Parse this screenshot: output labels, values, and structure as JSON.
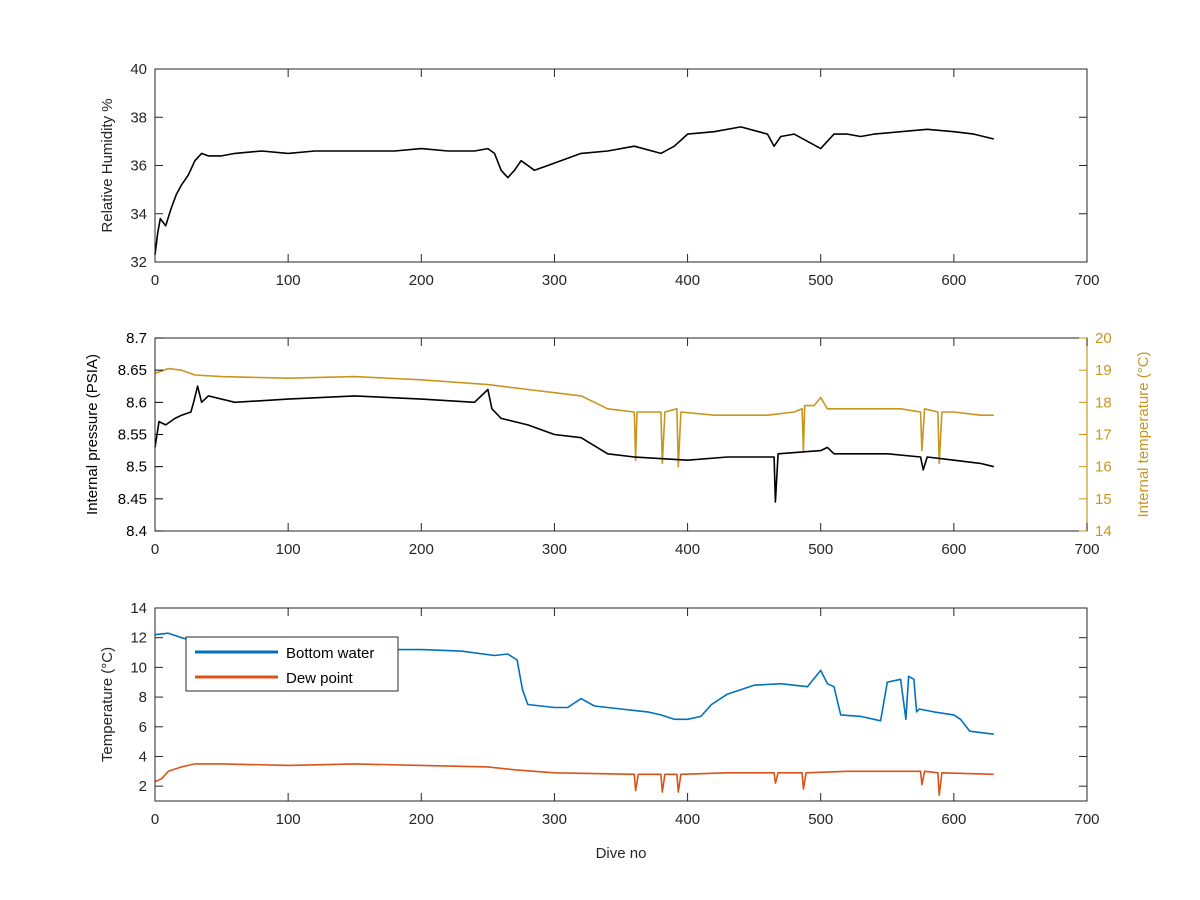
{
  "colors": {
    "black": "#000000",
    "gold": "#C8961E",
    "blue": "#0072BD",
    "orange": "#D95319",
    "axis": "#262626"
  },
  "xlabel": "Dive no",
  "chart_data": [
    {
      "type": "line",
      "xlabel": "",
      "ylabel": "Relative Humidity %",
      "xlim": [
        0,
        700
      ],
      "ylim": [
        32,
        40
      ],
      "xticks": [
        0,
        100,
        200,
        300,
        400,
        500,
        600,
        700
      ],
      "yticks": [
        32,
        34,
        36,
        38,
        40
      ],
      "grid": false,
      "series": [
        {
          "color": "#000000",
          "points": [
            [
              0,
              32.3
            ],
            [
              2,
              33.2
            ],
            [
              4,
              33.8
            ],
            [
              8,
              33.5
            ],
            [
              12,
              34.2
            ],
            [
              16,
              34.8
            ],
            [
              20,
              35.2
            ],
            [
              25,
              35.6
            ],
            [
              30,
              36.2
            ],
            [
              35,
              36.5
            ],
            [
              40,
              36.4
            ],
            [
              50,
              36.4
            ],
            [
              60,
              36.5
            ],
            [
              80,
              36.6
            ],
            [
              100,
              36.5
            ],
            [
              120,
              36.6
            ],
            [
              150,
              36.6
            ],
            [
              180,
              36.6
            ],
            [
              200,
              36.7
            ],
            [
              220,
              36.6
            ],
            [
              240,
              36.6
            ],
            [
              250,
              36.7
            ],
            [
              255,
              36.5
            ],
            [
              260,
              35.8
            ],
            [
              265,
              35.5
            ],
            [
              270,
              35.8
            ],
            [
              275,
              36.2
            ],
            [
              285,
              35.8
            ],
            [
              295,
              36.0
            ],
            [
              310,
              36.3
            ],
            [
              320,
              36.5
            ],
            [
              340,
              36.6
            ],
            [
              360,
              36.8
            ],
            [
              380,
              36.5
            ],
            [
              390,
              36.8
            ],
            [
              400,
              37.3
            ],
            [
              420,
              37.4
            ],
            [
              440,
              37.6
            ],
            [
              460,
              37.3
            ],
            [
              465,
              36.8
            ],
            [
              470,
              37.2
            ],
            [
              480,
              37.3
            ],
            [
              500,
              36.7
            ],
            [
              510,
              37.3
            ],
            [
              520,
              37.3
            ],
            [
              530,
              37.2
            ],
            [
              540,
              37.3
            ],
            [
              560,
              37.4
            ],
            [
              580,
              37.5
            ],
            [
              600,
              37.4
            ],
            [
              615,
              37.3
            ],
            [
              630,
              37.1
            ]
          ]
        }
      ]
    },
    {
      "type": "line",
      "xlabel": "",
      "ylabel": "Internal pressure (PSIA)",
      "ylabel_right": "Internal temperature (°C)",
      "xlim": [
        0,
        700
      ],
      "ylim": [
        8.4,
        8.7
      ],
      "ylim_right": [
        14,
        20
      ],
      "xticks": [
        0,
        100,
        200,
        300,
        400,
        500,
        600,
        700
      ],
      "yticks": [
        8.4,
        8.45,
        8.5,
        8.55,
        8.6,
        8.65,
        8.7
      ],
      "yticks_right": [
        14,
        15,
        16,
        17,
        18,
        19,
        20
      ],
      "grid": false,
      "series": [
        {
          "axis": "right",
          "color": "#C8961E",
          "points": [
            [
              0,
              18.9
            ],
            [
              10,
              19.05
            ],
            [
              20,
              19.0
            ],
            [
              30,
              18.85
            ],
            [
              50,
              18.8
            ],
            [
              100,
              18.75
            ],
            [
              150,
              18.8
            ],
            [
              200,
              18.7
            ],
            [
              250,
              18.55
            ],
            [
              280,
              18.4
            ],
            [
              300,
              18.3
            ],
            [
              320,
              18.2
            ],
            [
              330,
              18.0
            ],
            [
              340,
              17.8
            ],
            [
              360,
              17.7
            ],
            [
              361,
              16.2
            ],
            [
              362,
              17.7
            ],
            [
              380,
              17.7
            ],
            [
              381,
              16.1
            ],
            [
              383,
              17.7
            ],
            [
              392,
              17.8
            ],
            [
              393,
              16.0
            ],
            [
              395,
              17.7
            ],
            [
              420,
              17.6
            ],
            [
              460,
              17.6
            ],
            [
              480,
              17.7
            ],
            [
              486,
              17.8
            ],
            [
              487,
              16.5
            ],
            [
              488,
              17.9
            ],
            [
              495,
              17.9
            ],
            [
              500,
              18.15
            ],
            [
              505,
              17.8
            ],
            [
              510,
              17.8
            ],
            [
              530,
              17.8
            ],
            [
              560,
              17.8
            ],
            [
              575,
              17.7
            ],
            [
              576,
              16.5
            ],
            [
              578,
              17.8
            ],
            [
              588,
              17.7
            ],
            [
              589,
              16.1
            ],
            [
              591,
              17.7
            ],
            [
              600,
              17.7
            ],
            [
              620,
              17.6
            ],
            [
              630,
              17.6
            ]
          ]
        },
        {
          "axis": "left",
          "color": "#000000",
          "points": [
            [
              0,
              8.53
            ],
            [
              3,
              8.57
            ],
            [
              8,
              8.565
            ],
            [
              15,
              8.575
            ],
            [
              20,
              8.58
            ],
            [
              27,
              8.585
            ],
            [
              29,
              8.6
            ],
            [
              32,
              8.625
            ],
            [
              35,
              8.6
            ],
            [
              40,
              8.61
            ],
            [
              60,
              8.6
            ],
            [
              100,
              8.605
            ],
            [
              150,
              8.61
            ],
            [
              200,
              8.605
            ],
            [
              240,
              8.6
            ],
            [
              250,
              8.62
            ],
            [
              253,
              8.59
            ],
            [
              260,
              8.575
            ],
            [
              280,
              8.565
            ],
            [
              300,
              8.55
            ],
            [
              320,
              8.545
            ],
            [
              340,
              8.52
            ],
            [
              360,
              8.515
            ],
            [
              400,
              8.51
            ],
            [
              430,
              8.515
            ],
            [
              465,
              8.515
            ],
            [
              466,
              8.445
            ],
            [
              468,
              8.52
            ],
            [
              500,
              8.525
            ],
            [
              505,
              8.53
            ],
            [
              510,
              8.52
            ],
            [
              550,
              8.52
            ],
            [
              575,
              8.515
            ],
            [
              577,
              8.495
            ],
            [
              580,
              8.515
            ],
            [
              600,
              8.51
            ],
            [
              620,
              8.505
            ],
            [
              630,
              8.5
            ]
          ]
        }
      ]
    },
    {
      "type": "line",
      "xlabel": "Dive no",
      "ylabel": "Temperature (°C)",
      "xlim": [
        0,
        700
      ],
      "ylim": [
        1,
        14
      ],
      "xticks": [
        0,
        100,
        200,
        300,
        400,
        500,
        600,
        700
      ],
      "yticks": [
        2,
        4,
        6,
        8,
        10,
        12,
        14
      ],
      "grid": false,
      "legend": "top-left",
      "series": [
        {
          "name": "Bottom water",
          "color": "#0072BD",
          "points": [
            [
              0,
              12.2
            ],
            [
              10,
              12.3
            ],
            [
              20,
              12.0
            ],
            [
              40,
              11.5
            ],
            [
              80,
              11.3
            ],
            [
              120,
              11.3
            ],
            [
              160,
              11.2
            ],
            [
              200,
              11.2
            ],
            [
              230,
              11.1
            ],
            [
              255,
              10.8
            ],
            [
              265,
              10.9
            ],
            [
              272,
              10.5
            ],
            [
              276,
              8.5
            ],
            [
              280,
              7.5
            ],
            [
              300,
              7.3
            ],
            [
              310,
              7.3
            ],
            [
              320,
              7.9
            ],
            [
              330,
              7.4
            ],
            [
              350,
              7.2
            ],
            [
              370,
              7.0
            ],
            [
              380,
              6.8
            ],
            [
              390,
              6.5
            ],
            [
              400,
              6.5
            ],
            [
              410,
              6.7
            ],
            [
              418,
              7.5
            ],
            [
              430,
              8.2
            ],
            [
              450,
              8.8
            ],
            [
              470,
              8.9
            ],
            [
              490,
              8.7
            ],
            [
              500,
              9.8
            ],
            [
              505,
              8.9
            ],
            [
              510,
              8.7
            ],
            [
              515,
              6.8
            ],
            [
              530,
              6.7
            ],
            [
              545,
              6.4
            ],
            [
              550,
              9.0
            ],
            [
              560,
              9.2
            ],
            [
              564,
              6.5
            ],
            [
              566,
              9.4
            ],
            [
              570,
              9.2
            ],
            [
              572,
              7.0
            ],
            [
              574,
              7.2
            ],
            [
              585,
              7.0
            ],
            [
              600,
              6.8
            ],
            [
              605,
              6.5
            ],
            [
              612,
              5.7
            ],
            [
              630,
              5.5
            ]
          ]
        },
        {
          "name": "Dew point",
          "color": "#D95319",
          "points": [
            [
              0,
              2.3
            ],
            [
              5,
              2.5
            ],
            [
              10,
              3.0
            ],
            [
              20,
              3.3
            ],
            [
              30,
              3.5
            ],
            [
              50,
              3.5
            ],
            [
              100,
              3.4
            ],
            [
              150,
              3.5
            ],
            [
              200,
              3.4
            ],
            [
              250,
              3.3
            ],
            [
              270,
              3.1
            ],
            [
              300,
              2.9
            ],
            [
              360,
              2.8
            ],
            [
              361,
              1.7
            ],
            [
              363,
              2.8
            ],
            [
              380,
              2.8
            ],
            [
              381,
              1.6
            ],
            [
              383,
              2.8
            ],
            [
              392,
              2.8
            ],
            [
              393,
              1.6
            ],
            [
              395,
              2.8
            ],
            [
              430,
              2.9
            ],
            [
              465,
              2.9
            ],
            [
              466,
              2.2
            ],
            [
              468,
              2.9
            ],
            [
              486,
              2.9
            ],
            [
              487,
              1.8
            ],
            [
              489,
              2.9
            ],
            [
              520,
              3.0
            ],
            [
              560,
              3.0
            ],
            [
              575,
              3.0
            ],
            [
              576,
              2.1
            ],
            [
              578,
              3.0
            ],
            [
              588,
              2.9
            ],
            [
              589,
              1.4
            ],
            [
              591,
              2.9
            ],
            [
              630,
              2.8
            ]
          ]
        }
      ]
    }
  ]
}
